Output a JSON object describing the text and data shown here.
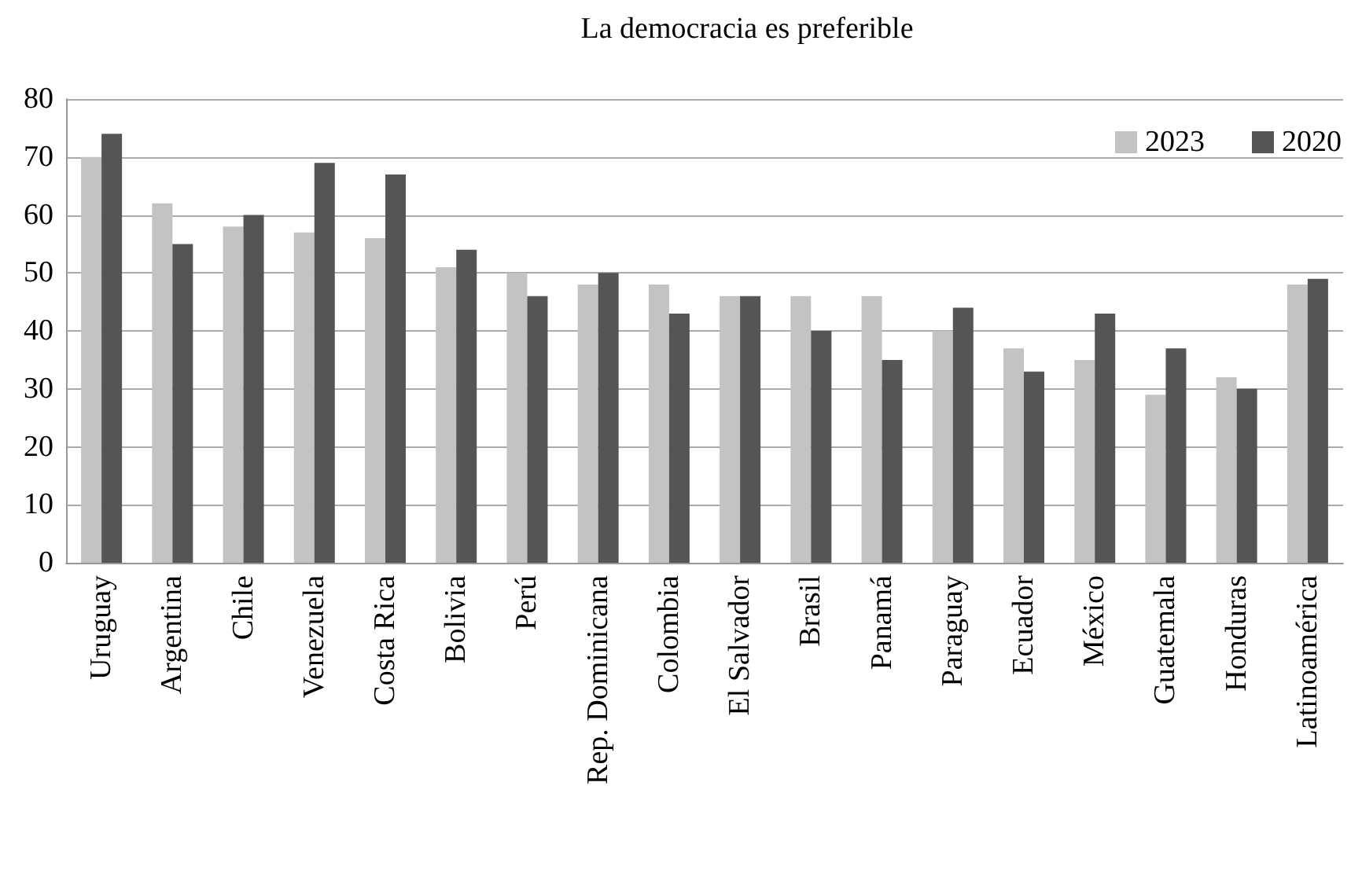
{
  "chart_data": {
    "type": "bar",
    "title": "La democracia es preferible",
    "categories": [
      "Uruguay",
      "Argentina",
      "Chile",
      "Venezuela",
      "Costa Rica",
      "Bolivia",
      "Perú",
      "Rep. Dominicana",
      "Colombia",
      "El Salvador",
      "Brasil",
      "Panamá",
      "Paraguay",
      "Ecuador",
      "México",
      "Guatemala",
      "Honduras",
      "Latinoamérica"
    ],
    "series": [
      {
        "name": "2023",
        "color": "#c3c3c3",
        "values": [
          70,
          62,
          58,
          57,
          56,
          51,
          50,
          48,
          48,
          46,
          46,
          46,
          40,
          37,
          35,
          29,
          32,
          48
        ]
      },
      {
        "name": "2020",
        "color": "#555555",
        "values": [
          74,
          55,
          60,
          69,
          67,
          54,
          46,
          50,
          43,
          46,
          40,
          35,
          44,
          33,
          43,
          37,
          30,
          49
        ]
      }
    ],
    "ylim": [
      0,
      80
    ],
    "yticks": [
      0,
      10,
      20,
      30,
      40,
      50,
      60,
      70,
      80
    ],
    "grid": "y",
    "legend": "top right"
  }
}
